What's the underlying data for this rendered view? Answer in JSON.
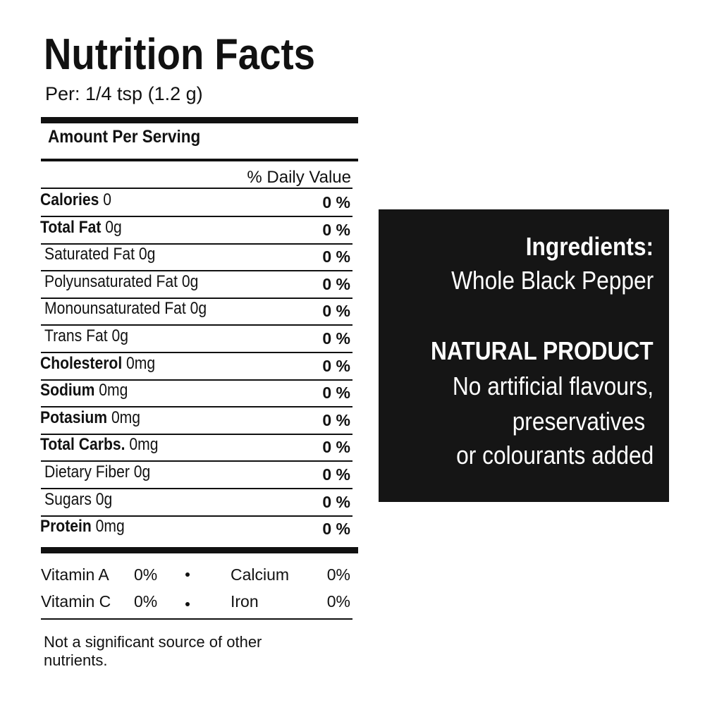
{
  "label": {
    "title": "Nutrition Facts",
    "serving": "Per: 1/4 tsp (1.2 g)",
    "amount_per_serving": "Amount Per Serving",
    "daily_value_header": "% Daily Value",
    "rows": [
      {
        "name": "Calories",
        "amount": "0",
        "dv": "0 %"
      },
      {
        "name": "Total Fat",
        "amount": "0g",
        "dv": "0 %"
      },
      {
        "name": "Saturated Fat",
        "amount": "0g",
        "dv": "0 %"
      },
      {
        "name": "Polyunsaturated Fat",
        "amount": "0g",
        "dv": "0 %"
      },
      {
        "name": "Monounsaturated Fat",
        "amount": "0g",
        "dv": "0 %"
      },
      {
        "name": "Trans Fat",
        "amount": "0g",
        "dv": "0 %"
      },
      {
        "name": "Cholesterol",
        "amount": "0mg",
        "dv": "0 %"
      },
      {
        "name": "Sodium",
        "amount": "0mg",
        "dv": "0 %"
      },
      {
        "name": "Potasium",
        "amount": "0mg",
        "dv": "0 %"
      },
      {
        "name": "Total Carbs.",
        "amount": "0mg",
        "dv": "0 %"
      },
      {
        "name": "Dietary Fiber",
        "amount": "0g",
        "dv": "0 %"
      },
      {
        "name": "Sugars",
        "amount": "0g",
        "dv": "0 %"
      },
      {
        "name": "Protein",
        "amount": "0mg",
        "dv": "0 %"
      }
    ],
    "vitamins": [
      [
        {
          "name": "Vitamin A",
          "value": "0%"
        },
        {
          "name": "Calcium",
          "value": "0%"
        }
      ],
      [
        {
          "name": "Vitamin C",
          "value": "0%"
        },
        {
          "name": "Iron",
          "value": "0%"
        }
      ]
    ],
    "footnote": "Not a significant source of other nutrients."
  },
  "ingredients_box": {
    "heading": "Ingredients:",
    "ingredients": "Whole Black Pepper",
    "claim": "NATURAL PRODUCT",
    "lines": [
      "No artificial flavours,",
      "preservatives",
      "or colourants added"
    ]
  }
}
